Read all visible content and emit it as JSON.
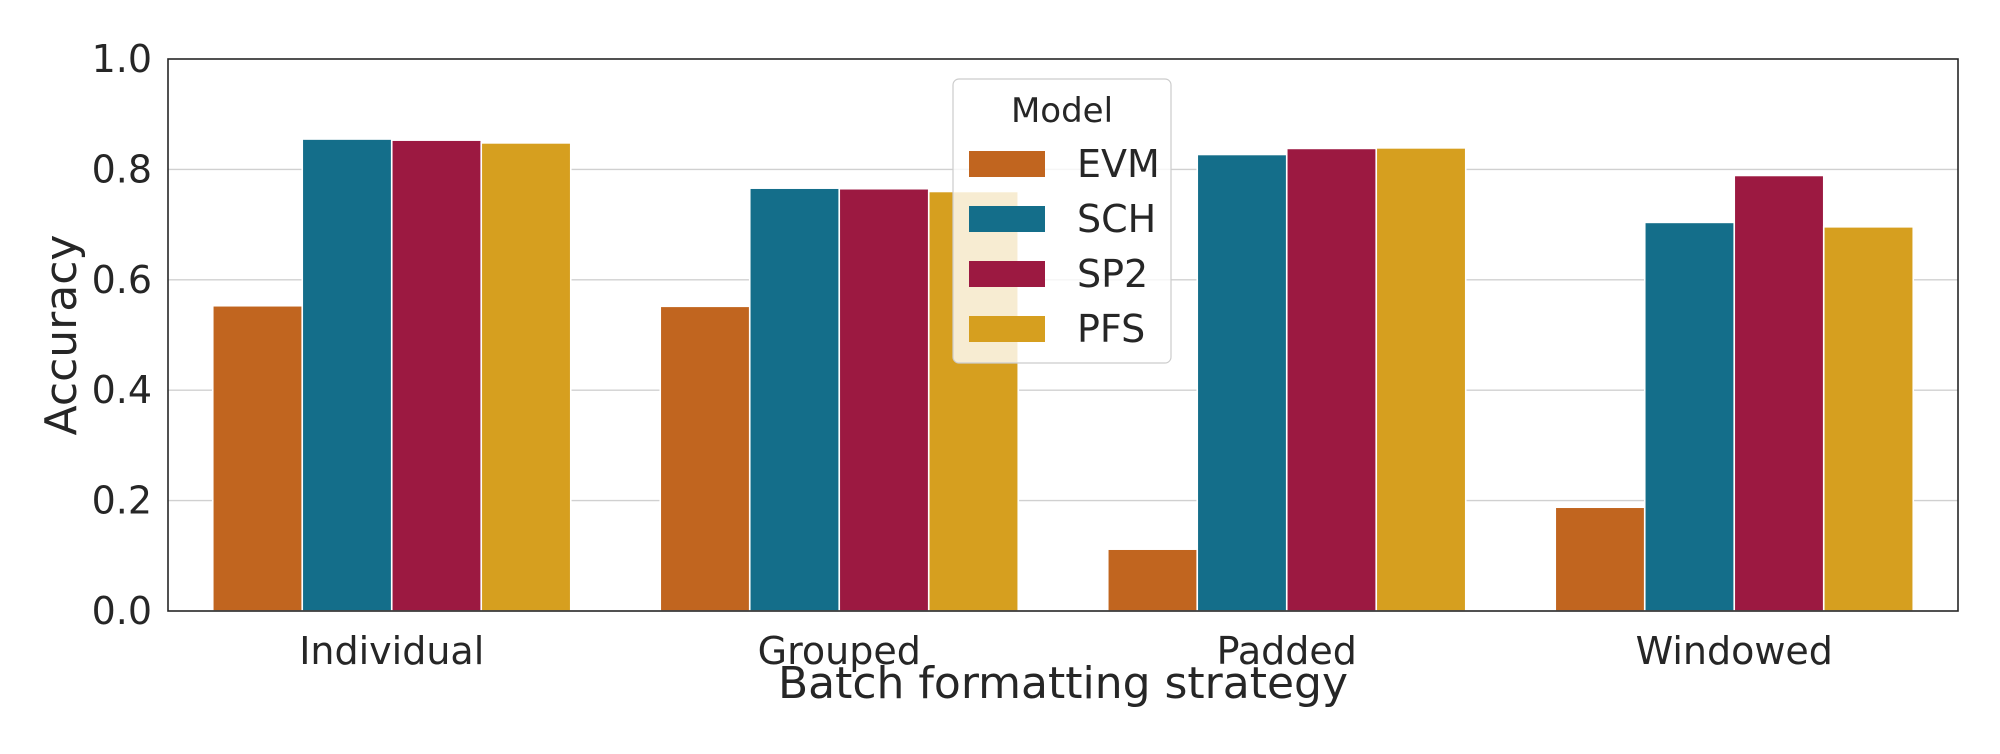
{
  "chart_data": {
    "type": "bar",
    "title": "",
    "xlabel": "Batch formatting strategy",
    "ylabel": "Accuracy",
    "categories": [
      "Individual",
      "Grouped",
      "Padded",
      "Windowed"
    ],
    "ylim": [
      0,
      1.0
    ],
    "yticks": [
      "0.0",
      "0.2",
      "0.4",
      "0.6",
      "0.8",
      "1.0"
    ],
    "grid": "horizontal",
    "legend": {
      "title": "Model",
      "placement": "upper-center"
    },
    "series": [
      {
        "name": "EVM",
        "color": "#c1651f",
        "values": [
          0.553,
          0.552,
          0.112,
          0.188
        ]
      },
      {
        "name": "SCH",
        "color": "#146e8a",
        "values": [
          0.855,
          0.766,
          0.827,
          0.704
        ]
      },
      {
        "name": "SP2",
        "color": "#9c1941",
        "values": [
          0.853,
          0.765,
          0.838,
          0.789
        ]
      },
      {
        "name": "PFS",
        "color": "#d69f1f",
        "values": [
          0.848,
          0.76,
          0.839,
          0.696
        ]
      }
    ]
  }
}
